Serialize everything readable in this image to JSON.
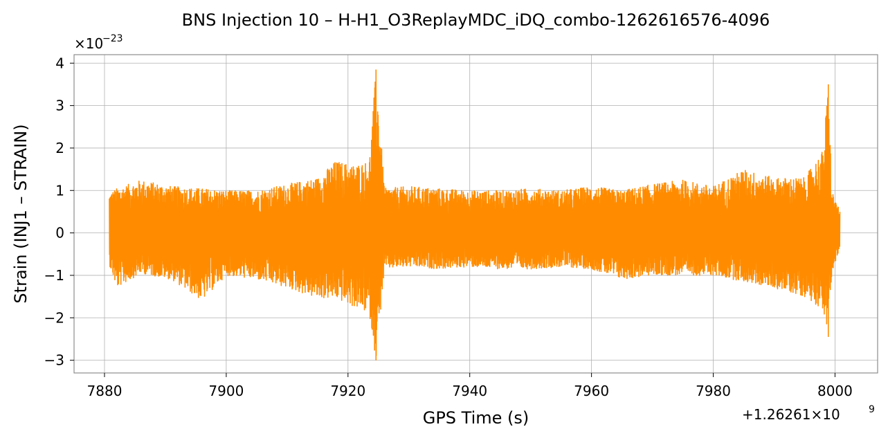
{
  "chart_data": {
    "type": "line",
    "title": "BNS Injection 10 – H-H1_O3ReplayMDC_iDQ_combo-1262616576-4096",
    "xlabel": "GPS Time (s)",
    "ylabel": "Strain (INJ1 – STRAIN)",
    "x_offset_label": "+1.26261×10",
    "x_offset_exponent": "9",
    "y_scale_label": "×10",
    "y_scale_exponent": "−23",
    "xlim": [
      7875,
      8007
    ],
    "ylim": [
      -3.3,
      4.2
    ],
    "x_ticks": [
      7880,
      7900,
      7920,
      7940,
      7960,
      7980,
      8000
    ],
    "x_tick_labels": [
      "7880",
      "7900",
      "7920",
      "7940",
      "7960",
      "7980",
      "8000"
    ],
    "y_ticks": [
      -3,
      -2,
      -1,
      0,
      1,
      2,
      3,
      4
    ],
    "y_tick_labels": [
      "−3",
      "−2",
      "−1",
      "0",
      "1",
      "2",
      "3",
      "4"
    ],
    "grid": true,
    "series": [
      {
        "color": "#ff8c00",
        "x_range": [
          7880.8,
          8000.8
        ],
        "description_points": [
          {
            "x": 7880.8,
            "y_max": 0.95,
            "y_min": -0.75
          },
          {
            "x": 7882.0,
            "y_max": 1.05,
            "y_min": -1.3
          },
          {
            "x": 7886.0,
            "y_max": 1.25,
            "y_min": -0.95
          },
          {
            "x": 7891.0,
            "y_max": 1.1,
            "y_min": -1.1
          },
          {
            "x": 7896.0,
            "y_max": 1.05,
            "y_min": -1.6
          },
          {
            "x": 7900.0,
            "y_max": 1.0,
            "y_min": -1.0
          },
          {
            "x": 7905.0,
            "y_max": 1.0,
            "y_min": -1.1
          },
          {
            "x": 7910.0,
            "y_max": 1.15,
            "y_min": -1.3
          },
          {
            "x": 7915.0,
            "y_max": 1.3,
            "y_min": -1.55
          },
          {
            "x": 7918.0,
            "y_max": 1.7,
            "y_min": -1.55
          },
          {
            "x": 7921.0,
            "y_max": 1.6,
            "y_min": -1.75
          },
          {
            "x": 7923.5,
            "y_max": 1.7,
            "y_min": -1.9
          },
          {
            "x": 7924.6,
            "y_max": 3.85,
            "y_min": -3.0
          },
          {
            "x": 7926.0,
            "y_max": 1.05,
            "y_min": -0.85
          },
          {
            "x": 7930.0,
            "y_max": 1.1,
            "y_min": -0.8
          },
          {
            "x": 7935.0,
            "y_max": 1.05,
            "y_min": -0.85
          },
          {
            "x": 7940.0,
            "y_max": 1.0,
            "y_min": -0.8
          },
          {
            "x": 7945.0,
            "y_max": 1.0,
            "y_min": -0.85
          },
          {
            "x": 7950.0,
            "y_max": 1.05,
            "y_min": -0.85
          },
          {
            "x": 7955.0,
            "y_max": 1.0,
            "y_min": -0.8
          },
          {
            "x": 7960.0,
            "y_max": 1.1,
            "y_min": -0.85
          },
          {
            "x": 7965.0,
            "y_max": 1.0,
            "y_min": -1.1
          },
          {
            "x": 7970.0,
            "y_max": 1.15,
            "y_min": -1.0
          },
          {
            "x": 7975.0,
            "y_max": 1.25,
            "y_min": -1.0
          },
          {
            "x": 7980.0,
            "y_max": 1.1,
            "y_min": -1.0
          },
          {
            "x": 7985.0,
            "y_max": 1.5,
            "y_min": -1.15
          },
          {
            "x": 7990.0,
            "y_max": 1.3,
            "y_min": -1.3
          },
          {
            "x": 7995.0,
            "y_max": 1.3,
            "y_min": -1.5
          },
          {
            "x": 7998.0,
            "y_max": 1.95,
            "y_min": -1.8
          },
          {
            "x": 7998.9,
            "y_max": 3.5,
            "y_min": -2.45
          },
          {
            "x": 7999.5,
            "y_max": 1.0,
            "y_min": -0.9
          },
          {
            "x": 8000.8,
            "y_max": 0.5,
            "y_min": -0.4
          }
        ]
      }
    ]
  }
}
